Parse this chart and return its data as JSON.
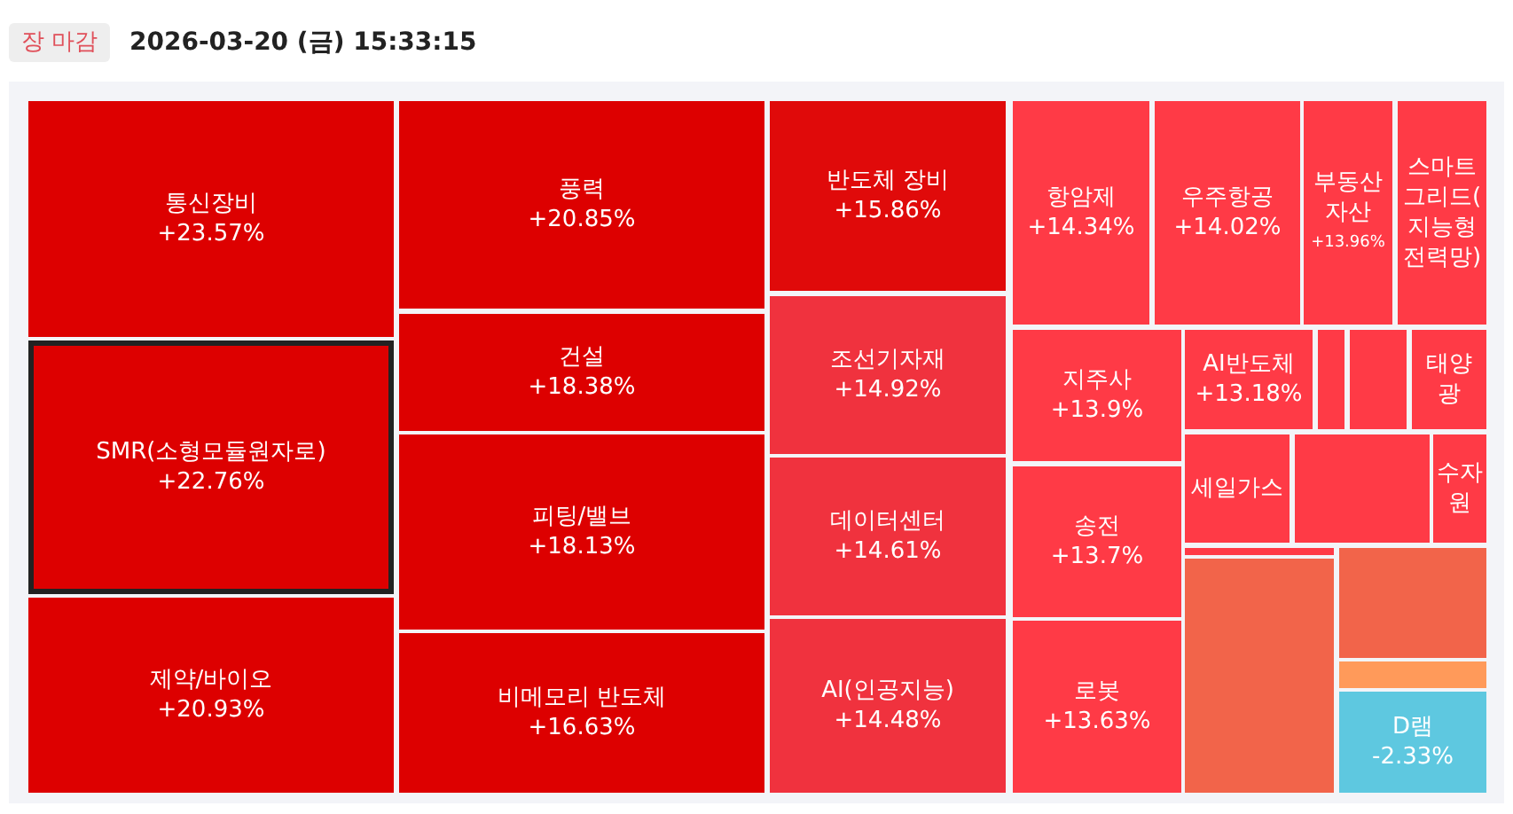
{
  "chart_data": {
    "type": "other",
    "title": "2026-03-20 (금) 15:33:15",
    "annotations": [
      "장 마감"
    ],
    "categories": [
      "통신장비",
      "SMR(소형모듈원자로)",
      "제약/바이오",
      "풍력",
      "건설",
      "피팅/밸브",
      "비메모리 반도체",
      "반도체 장비",
      "조선기자재",
      "데이터센터",
      "AI(인공지능)",
      "항암제",
      "우주항공",
      "부동산자산",
      "스마트그리드(지능형전력망)",
      "지주사",
      "송전",
      "로봇",
      "AI반도체",
      null,
      null,
      "태양광",
      "세일가스",
      null,
      "수자원",
      null,
      null,
      null,
      null,
      "D램"
    ],
    "values": [
      23.57,
      22.76,
      20.93,
      20.85,
      18.38,
      18.13,
      16.63,
      15.86,
      14.92,
      14.61,
      14.48,
      14.34,
      14.02,
      13.96,
      null,
      13.9,
      13.7,
      13.63,
      13.18,
      null,
      null,
      null,
      null,
      null,
      null,
      null,
      null,
      null,
      null,
      -2.33
    ],
    "value_labels": [
      "+23.57%",
      "+22.76%",
      "+20.93%",
      "+20.85%",
      "+18.38%",
      "+18.13%",
      "+16.63%",
      "+15.86%",
      "+14.92%",
      "+14.61%",
      "+14.48%",
      "+14.34%",
      "+14.02%",
      "+13.96%",
      null,
      "+13.9%",
      "+13.7%",
      "+13.63%",
      "+13.18%",
      null,
      null,
      null,
      null,
      null,
      null,
      null,
      null,
      null,
      null,
      "-2.33%"
    ],
    "colors": [
      "#dd0000",
      "#dd0000",
      "#dd0000",
      "#dd0000",
      "#dd0000",
      "#dd0000",
      "#dd0000",
      "#e00a0a",
      "#f0323e",
      "#f0323e",
      "#f0323e",
      "#ff3a46",
      "#ff3a46",
      "#ff3a46",
      "#ff3a46",
      "#ff3a46",
      "#ff3a46",
      "#ff3a46",
      "#ff3a46",
      "#ff3a46",
      "#ff3a46",
      "#ff3a46",
      "#ff3a46",
      "#ff3a46",
      "#ff3a46",
      "#ff3a46",
      "#f2644a",
      "#f2644a",
      "#ff9a5a",
      "#5ec8e0"
    ]
  }
}
